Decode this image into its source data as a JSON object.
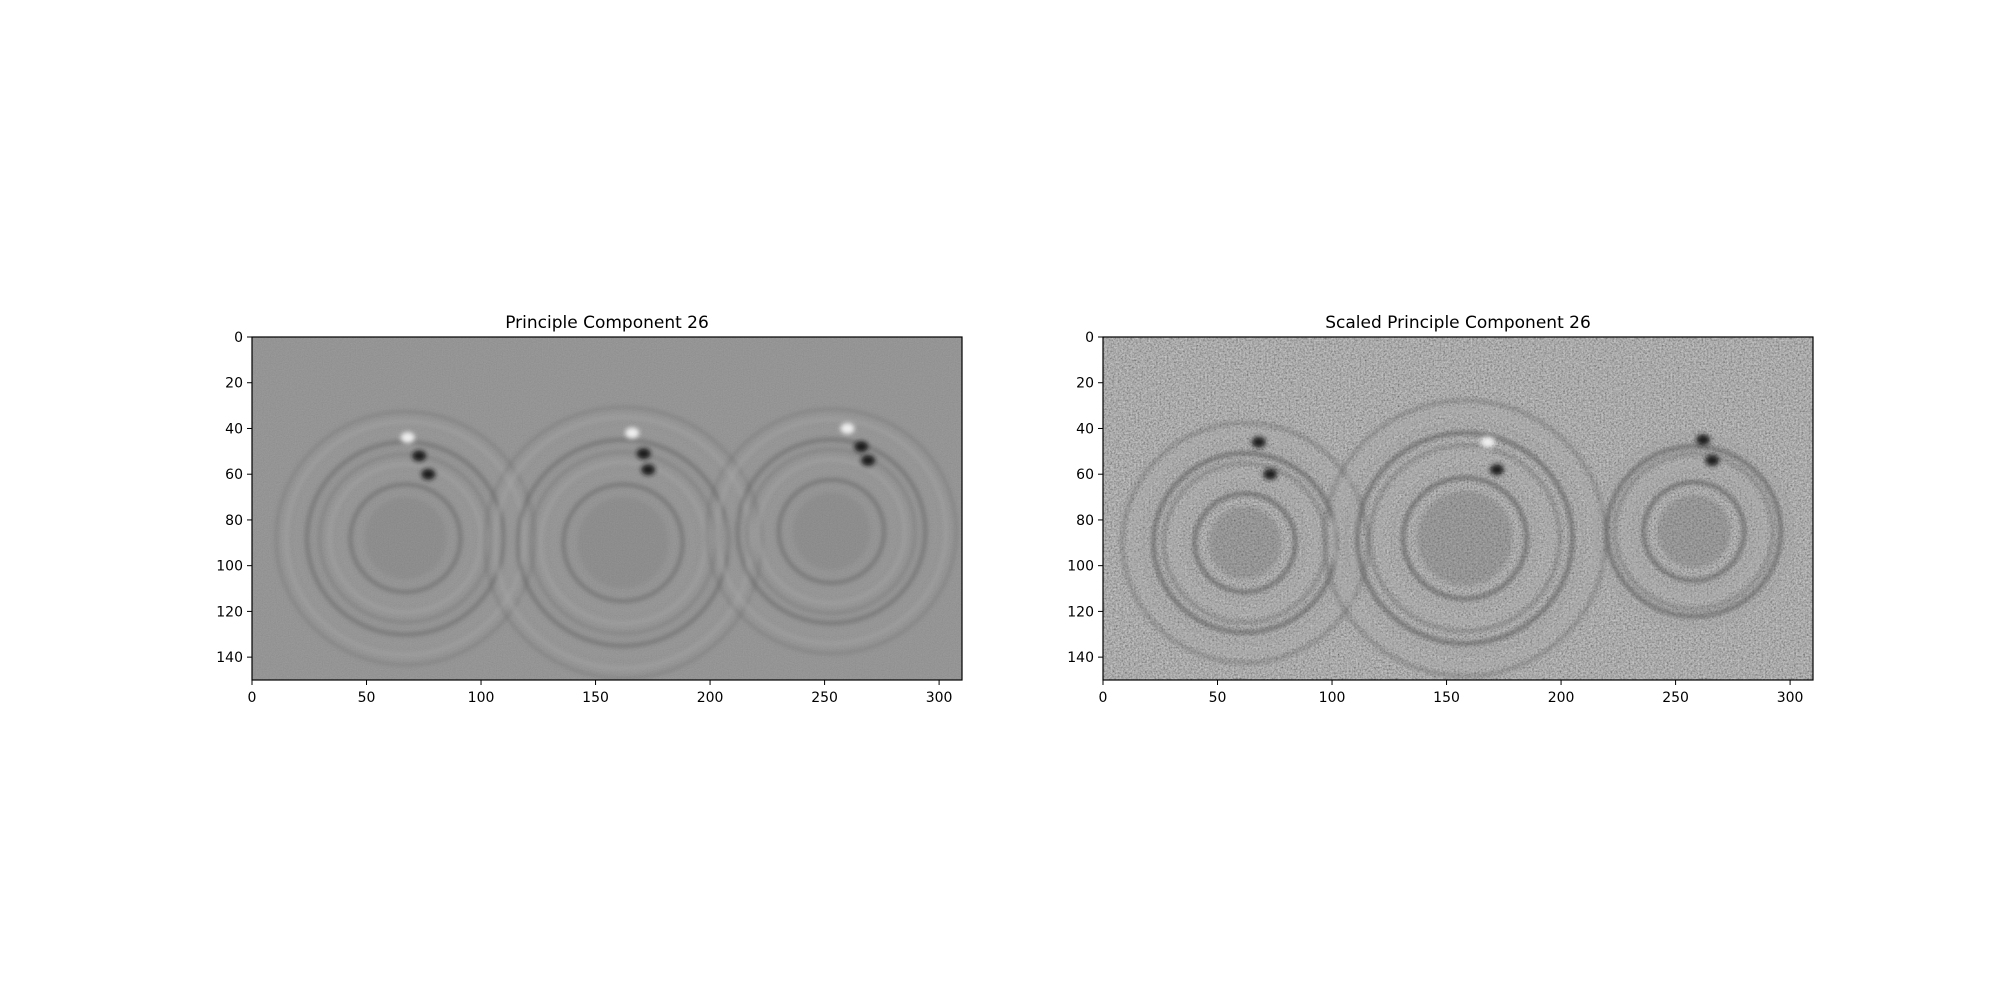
{
  "chart_data": [
    {
      "type": "heatmap",
      "title": "Principle Component 26",
      "xlim": [
        0,
        310
      ],
      "ylim": [
        150,
        0
      ],
      "x_ticks": [
        0,
        50,
        100,
        150,
        200,
        250,
        300
      ],
      "y_ticks": [
        0,
        20,
        40,
        60,
        80,
        100,
        120,
        140
      ],
      "colormap": "gray",
      "grid": false,
      "features": {
        "rings": [
          {
            "cx": 67,
            "cy": 88,
            "radii": [
              24,
              33,
              43,
              52
            ]
          },
          {
            "cx": 162,
            "cy": 90,
            "radii": [
              26,
              36,
              46,
              56
            ]
          },
          {
            "cx": 253,
            "cy": 85,
            "radii": [
              23,
              32,
              41,
              50
            ]
          }
        ],
        "blobs": [
          {
            "x": 68,
            "y": 44,
            "tone": "light"
          },
          {
            "x": 73,
            "y": 52,
            "tone": "dark"
          },
          {
            "x": 77,
            "y": 60,
            "tone": "dark"
          },
          {
            "x": 166,
            "y": 42,
            "tone": "light"
          },
          {
            "x": 171,
            "y": 51,
            "tone": "dark"
          },
          {
            "x": 173,
            "y": 58,
            "tone": "dark"
          },
          {
            "x": 260,
            "y": 40,
            "tone": "light"
          },
          {
            "x": 266,
            "y": 48,
            "tone": "dark"
          },
          {
            "x": 269,
            "y": 54,
            "tone": "dark"
          }
        ],
        "noise": "low",
        "contrast": "low"
      }
    },
    {
      "type": "heatmap",
      "title": "Scaled Principle Component 26",
      "xlim": [
        0,
        310
      ],
      "ylim": [
        150,
        0
      ],
      "x_ticks": [
        0,
        50,
        100,
        150,
        200,
        250,
        300
      ],
      "y_ticks": [
        0,
        20,
        40,
        60,
        80,
        100,
        120,
        140
      ],
      "colormap": "gray",
      "grid": false,
      "features": {
        "rings": [
          {
            "cx": 62,
            "cy": 90,
            "radii": [
              22,
              31,
              40,
              49
            ]
          },
          {
            "cx": 158,
            "cy": 88,
            "radii": [
              27,
              37,
              47,
              57
            ]
          },
          {
            "cx": 258,
            "cy": 85,
            "radii": [
              22,
              30,
              38
            ]
          }
        ],
        "blobs": [
          {
            "x": 68,
            "y": 46,
            "tone": "dark"
          },
          {
            "x": 73,
            "y": 60,
            "tone": "dark"
          },
          {
            "x": 168,
            "y": 46,
            "tone": "light"
          },
          {
            "x": 172,
            "y": 58,
            "tone": "dark"
          },
          {
            "x": 262,
            "y": 45,
            "tone": "dark"
          },
          {
            "x": 266,
            "y": 54,
            "tone": "dark"
          }
        ],
        "noise": "high",
        "contrast": "high"
      }
    }
  ]
}
